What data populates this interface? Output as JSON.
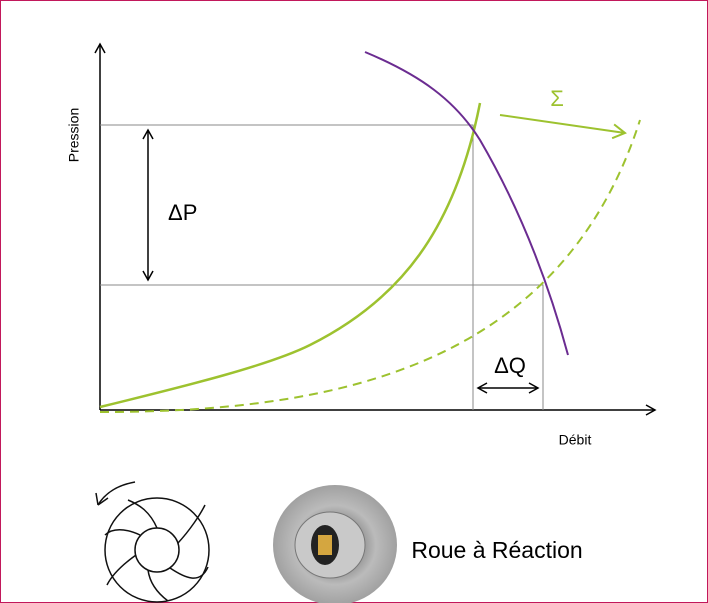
{
  "axes": {
    "y_label": "Pression",
    "x_label": "Débit"
  },
  "annotations": {
    "delta_p": "ΔP",
    "delta_q": "ΔQ",
    "sigma": "Σ"
  },
  "caption": "Roue à Réaction"
}
